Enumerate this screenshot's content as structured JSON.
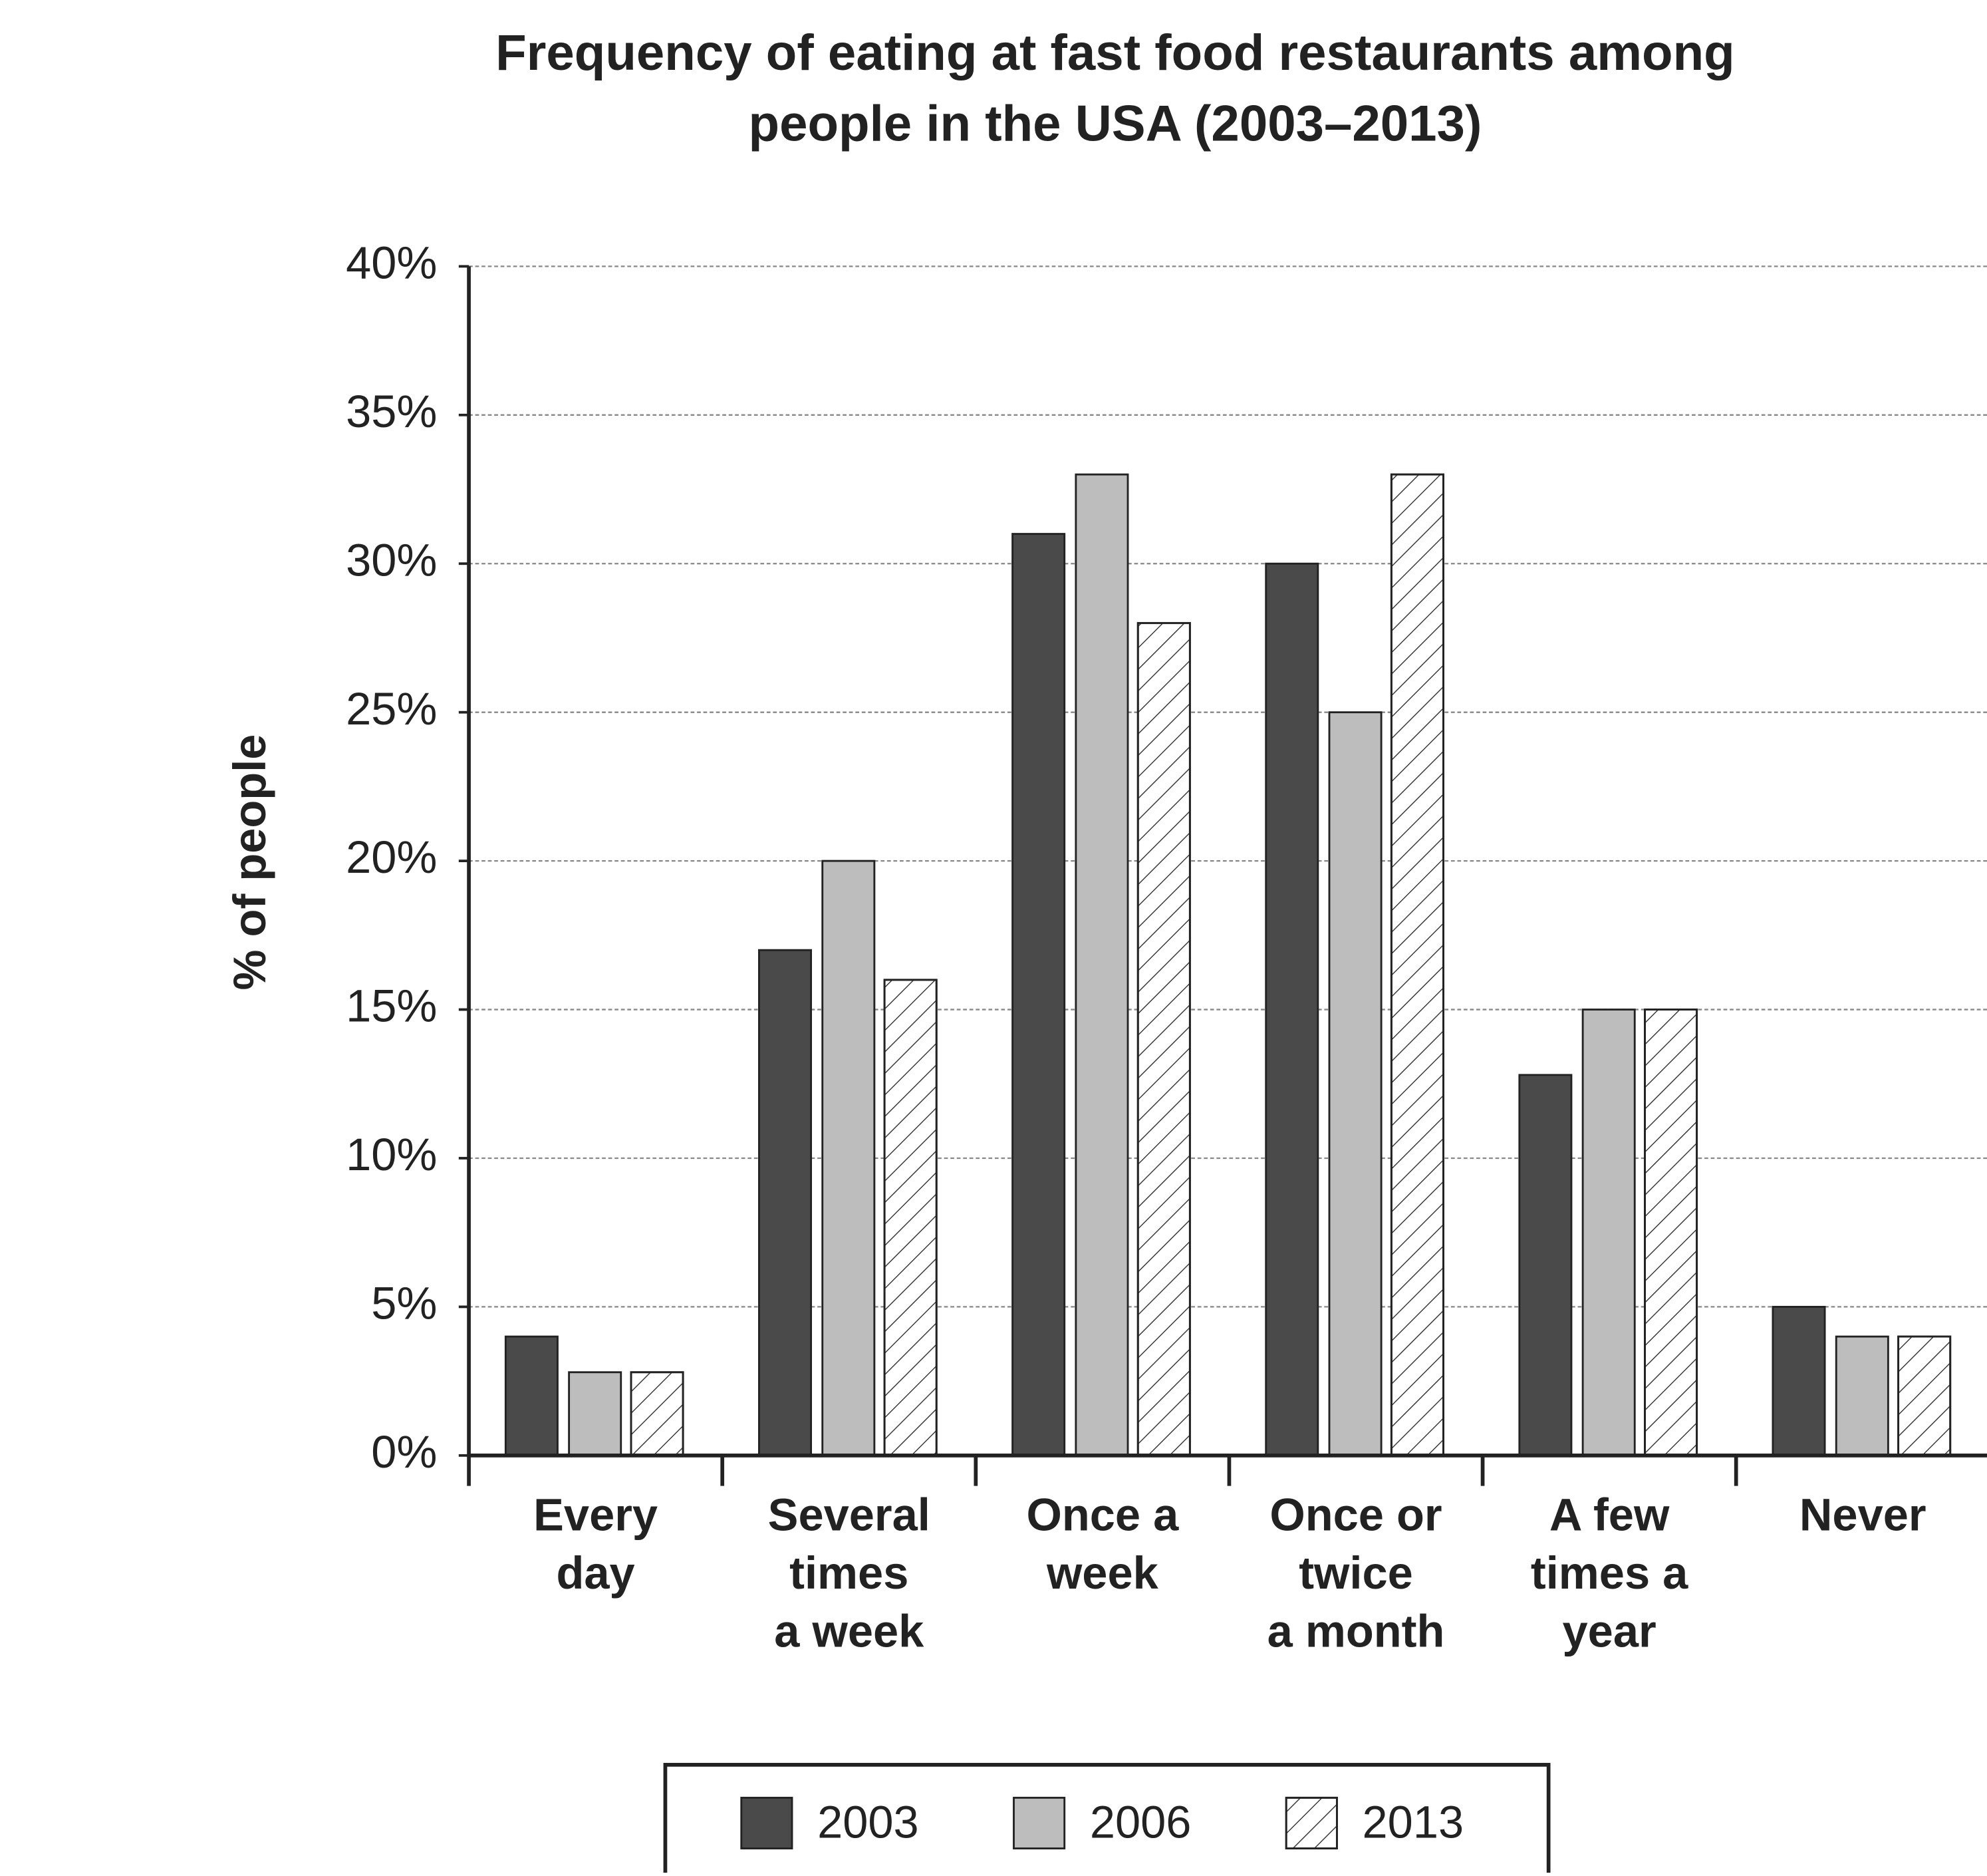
{
  "chart_data": {
    "type": "bar",
    "title": "Frequency of eating at fast food restaurants among\npeople in the USA (2003–2013)",
    "y_label": "% of people",
    "categories": [
      "Every\nday",
      "Several\ntimes\na week",
      "Once a\nweek",
      "Once or\ntwice\na month",
      "A few\ntimes a\nyear",
      "Never"
    ],
    "series": [
      {
        "name": "2003",
        "color": "#4a4a4a",
        "values": [
          4,
          17,
          31,
          30,
          12.8,
          5
        ]
      },
      {
        "name": "2006",
        "color": "#bdbdbd",
        "values": [
          2.8,
          20,
          33,
          25,
          15,
          4
        ]
      },
      {
        "name": "2013",
        "color": "#ffffff",
        "pattern": "hatch",
        "values": [
          2.8,
          16,
          28,
          33,
          15,
          4
        ]
      }
    ],
    "ylim": [
      0,
      40
    ],
    "yticks": [
      {
        "value": 0,
        "label": "0%"
      },
      {
        "value": 5,
        "label": "5%"
      },
      {
        "value": 10,
        "label": "10%"
      },
      {
        "value": 15,
        "label": "15%"
      },
      {
        "value": 20,
        "label": "20%"
      },
      {
        "value": 25,
        "label": "25%"
      },
      {
        "value": 30,
        "label": "30%"
      },
      {
        "value": 35,
        "label": "35%"
      },
      {
        "value": 40,
        "label": "40%"
      }
    ],
    "grid": true,
    "legend": "bottom"
  }
}
